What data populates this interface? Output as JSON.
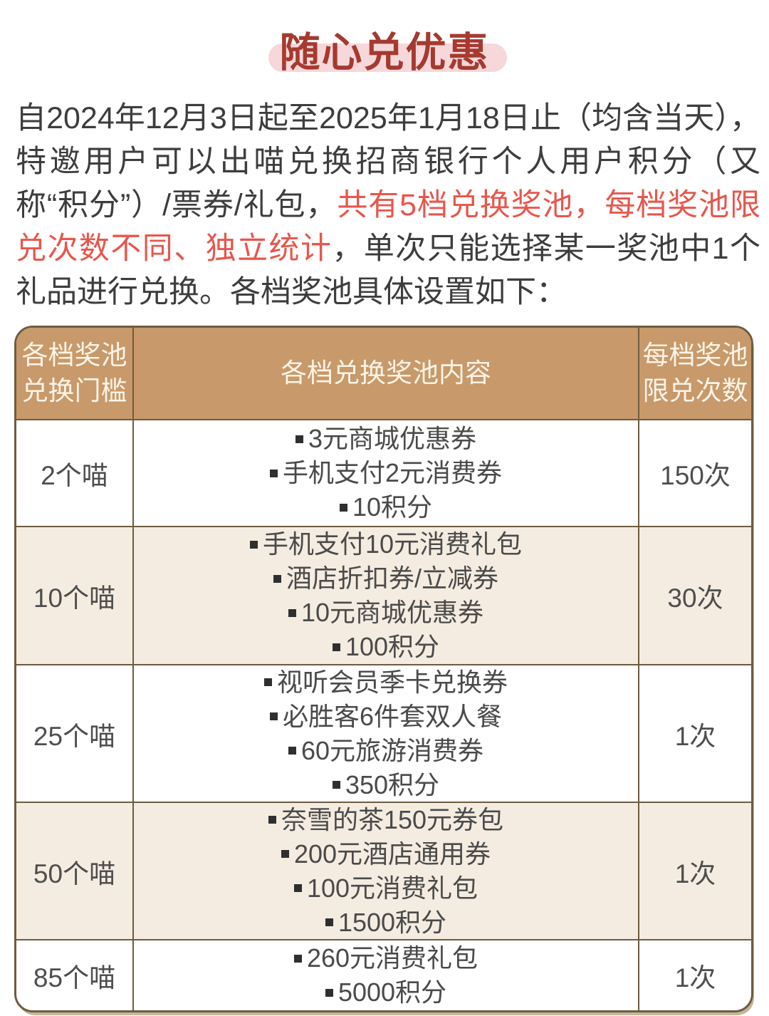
{
  "title": {
    "text": "随心兑优惠"
  },
  "intro": {
    "part1": "自2024年12月3日起至2025年1月18日止（均含当天），特邀用户可以出喵兑换招商银行个人用户积分（又称“积分”）/票券/礼包，",
    "highlight": "共有5档兑换奖池，每档奖池限兑次数不同、独立统计",
    "part2": "，单次只能选择某一奖池中1个礼品进行兑换。各档奖池具体设置如下："
  },
  "table": {
    "columns": [
      {
        "lines": [
          "各档奖池",
          "兑换门槛"
        ]
      },
      {
        "lines": [
          "各档兑换奖池内容"
        ]
      },
      {
        "lines": [
          "每档奖池",
          "限兑次数"
        ]
      }
    ],
    "rows": [
      {
        "threshold": "2个喵",
        "items": [
          "3元商城优惠券",
          "手机支付2元消费券",
          "10积分"
        ],
        "limit": "150次"
      },
      {
        "threshold": "10个喵",
        "items": [
          "手机支付10元消费礼包",
          "酒店折扣券/立减券",
          "10元商城优惠券",
          "100积分"
        ],
        "limit": "30次"
      },
      {
        "threshold": "25个喵",
        "items": [
          "视听会员季卡兑换券",
          "必胜客6件套双人餐",
          "60元旅游消费券",
          "350积分"
        ],
        "limit": "1次"
      },
      {
        "threshold": "50个喵",
        "items": [
          "奈雪的茶150元券包",
          "200元酒店通用券",
          "100元消费礼包",
          "1500积分"
        ],
        "limit": "1次"
      },
      {
        "threshold": "85个喵",
        "items": [
          "260元消费礼包",
          "5000积分"
        ],
        "limit": "1次"
      }
    ]
  },
  "colors": {
    "title_text": "#a53a30",
    "title_highlight": "#f6d8da",
    "intro_text": "#3d3d3d",
    "intro_emphasis_red": "#e8564c",
    "table_border": "#6e5c40",
    "header_bg": "#c8996a",
    "header_text": "#fbf4e7",
    "row_alt_bg": "#f5ece1",
    "cell_text": "#4a4a4a"
  }
}
